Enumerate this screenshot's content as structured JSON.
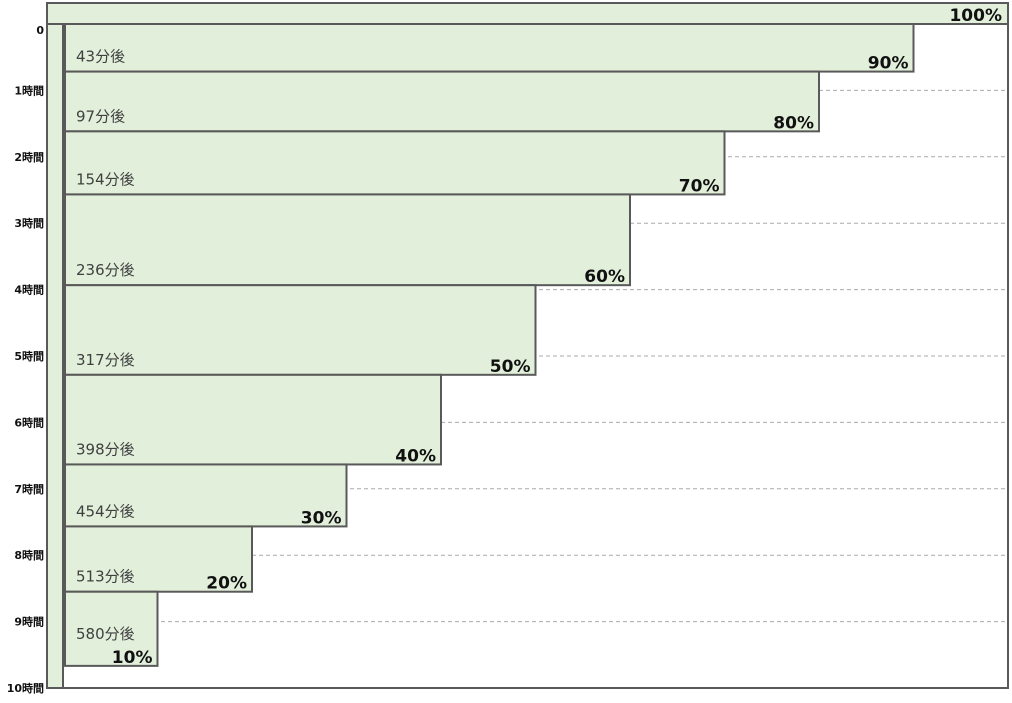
{
  "chart_data": {
    "type": "cascade",
    "total": 100,
    "total_label": "100%",
    "values": [
      90,
      80,
      70,
      60,
      50,
      40,
      30,
      20,
      10
    ],
    "value_labels": [
      "90%",
      "80%",
      "70%",
      "60%",
      "50%",
      "40%",
      "30%",
      "20%",
      "10%"
    ],
    "times": [
      43,
      97,
      154,
      236,
      317,
      398,
      454,
      513,
      580
    ],
    "time_labels": [
      "43分後",
      "97分後",
      "154分後",
      "236分後",
      "317分後",
      "398分後",
      "454分後",
      "513分後",
      "580分後"
    ],
    "xlim": [
      0,
      100
    ],
    "ylim": [
      0,
      600
    ],
    "yticks": [
      0,
      {
        "value": 60,
        "label": "1時間"
      },
      {
        "value": 120,
        "label": "2時間"
      },
      {
        "value": 180,
        "label": "3時間"
      },
      {
        "value": 240,
        "label": "4時間"
      },
      {
        "value": 300,
        "label": "5時間"
      },
      {
        "value": 360,
        "label": "6時間"
      },
      {
        "value": 420,
        "label": "7時間"
      },
      {
        "value": 480,
        "label": "8時間"
      },
      {
        "value": 540,
        "label": "9時間"
      },
      {
        "value": 600,
        "label": "10時間"
      }
    ],
    "color": "#e2efda",
    "grid": true
  }
}
